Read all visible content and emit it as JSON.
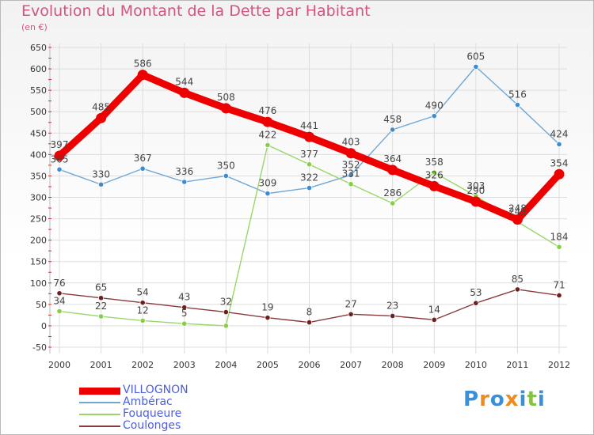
{
  "title": "Evolution du Montant de la Dette par Habitant",
  "unit": "(en €)",
  "logo": "Proxiti",
  "colors": {
    "title": "#d2557f",
    "grid": "#dddddd",
    "axis_text": "#333333"
  },
  "chart_data": {
    "type": "line",
    "title": "Evolution du Montant de la Dette par Habitant",
    "ylabel": "(en €)",
    "xlabel": "",
    "ylim": [
      -50,
      650
    ],
    "yticks": [
      -50,
      0,
      50,
      100,
      150,
      200,
      250,
      300,
      350,
      400,
      450,
      500,
      550,
      600,
      650
    ],
    "grid": true,
    "legend_position": "bottom-left",
    "categories": [
      "2000",
      "2001",
      "2002",
      "2003",
      "2004",
      "2005",
      "2006",
      "2007",
      "2008",
      "2009",
      "2010",
      "2011",
      "2012"
    ],
    "series": [
      {
        "name": "VILLOGNON",
        "color": "#ee0000",
        "marker": "#ee0000",
        "values": [
          397,
          485,
          586,
          544,
          508,
          476,
          441,
          403,
          364,
          326,
          290,
          248,
          354
        ]
      },
      {
        "name": "Ambérac",
        "color": "#6fa8d6",
        "marker": "#3d8ccf",
        "values": [
          365,
          330,
          367,
          336,
          350,
          309,
          322,
          352,
          458,
          490,
          605,
          516,
          424
        ]
      },
      {
        "name": "Fouqueure",
        "color": "#9ad66a",
        "marker": "#86d040",
        "values": [
          34,
          22,
          12,
          5,
          0,
          422,
          377,
          331,
          286,
          358,
          303,
          243,
          184
        ]
      },
      {
        "name": "Coulonges",
        "color": "#8a3a3a",
        "marker": "#6e1f1f",
        "values": [
          76,
          65,
          54,
          43,
          32,
          19,
          8,
          27,
          23,
          14,
          53,
          85,
          71
        ]
      }
    ],
    "data_labels": {
      "VILLOGNON": [
        "397",
        "485",
        "586",
        "544",
        "508",
        "476",
        "441",
        "403",
        "364",
        "326",
        "290",
        "248",
        "354"
      ],
      "Ambérac": [
        "365",
        "330",
        "367",
        "336",
        "350",
        "309",
        "322",
        "352",
        "458",
        "490",
        "605",
        "516",
        "424"
      ],
      "Fouqueure": [
        "34",
        "22",
        "12",
        "5",
        "",
        "422",
        "377",
        "331",
        "286",
        "358",
        "303",
        "243",
        "184"
      ],
      "Coulonges": [
        "76",
        "65",
        "54",
        "43",
        "32",
        "19",
        "8",
        "27",
        "23",
        "14",
        "53",
        "85",
        "71"
      ]
    }
  }
}
